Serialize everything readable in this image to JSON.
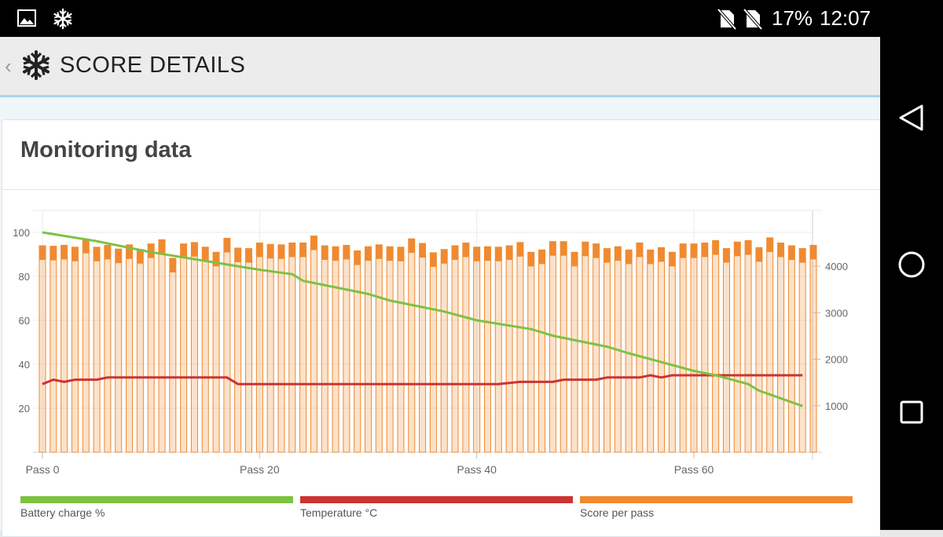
{
  "status_bar": {
    "battery": "17%",
    "time": "12:07"
  },
  "app_bar": {
    "title": "SCORE DETAILS"
  },
  "card": {
    "title": "Monitoring data"
  },
  "chart_data": {
    "type": "bar+line",
    "x_tick_labels": [
      "Pass 0",
      "Pass 20",
      "Pass 40",
      "Pass 60"
    ],
    "y_left_ticks": [
      "20",
      "40",
      "60",
      "80",
      "100"
    ],
    "y_right_ticks": [
      "1000",
      "2000",
      "3000",
      "4000"
    ],
    "y_left_range": [
      0,
      110
    ],
    "y_right_range": [
      0,
      5200
    ],
    "x_range": [
      0,
      71
    ],
    "grid": true,
    "colors": {
      "battery": "#7dc242",
      "temperature": "#cc3333",
      "score": "#f08a30"
    },
    "score_per_pass": [
      4440,
      4430,
      4450,
      4410,
      4580,
      4410,
      4450,
      4370,
      4460,
      4360,
      4480,
      4570,
      4170,
      4480,
      4510,
      4410,
      4300,
      4600,
      4390,
      4380,
      4500,
      4470,
      4460,
      4500,
      4500,
      4650,
      4440,
      4420,
      4450,
      4330,
      4420,
      4460,
      4420,
      4410,
      4590,
      4490,
      4290,
      4360,
      4440,
      4500,
      4410,
      4420,
      4410,
      4440,
      4510,
      4300,
      4350,
      4530,
      4530,
      4300,
      4520,
      4480,
      4380,
      4420,
      4350,
      4500,
      4350,
      4400,
      4300,
      4480,
      4480,
      4500,
      4550,
      4380,
      4520,
      4550,
      4400,
      4610,
      4500,
      4440,
      4380,
      4450
    ],
    "battery_charge": [
      [
        0,
        100
      ],
      [
        5,
        96
      ],
      [
        10,
        91
      ],
      [
        15,
        87
      ],
      [
        20,
        83
      ],
      [
        23,
        81
      ],
      [
        24,
        78
      ],
      [
        30,
        72
      ],
      [
        32,
        69
      ],
      [
        37,
        64
      ],
      [
        40,
        60
      ],
      [
        45,
        56
      ],
      [
        47,
        53
      ],
      [
        52,
        48
      ],
      [
        54,
        45
      ],
      [
        57,
        41
      ],
      [
        60,
        37
      ],
      [
        62,
        35
      ],
      [
        65,
        31
      ],
      [
        66,
        28
      ],
      [
        70,
        21
      ]
    ],
    "temperature": [
      [
        0,
        31
      ],
      [
        1,
        33
      ],
      [
        2,
        32
      ],
      [
        3,
        33
      ],
      [
        5,
        33
      ],
      [
        6,
        34
      ],
      [
        17,
        34
      ],
      [
        18,
        31
      ],
      [
        42,
        31
      ],
      [
        44,
        32
      ],
      [
        47,
        32
      ],
      [
        48,
        33
      ],
      [
        51,
        33
      ],
      [
        52,
        34
      ],
      [
        55,
        34
      ],
      [
        56,
        35
      ],
      [
        57,
        34
      ],
      [
        58,
        35
      ],
      [
        70,
        35
      ]
    ],
    "legend": [
      "Battery charge %",
      "Temperature °C",
      "Score per pass"
    ]
  }
}
